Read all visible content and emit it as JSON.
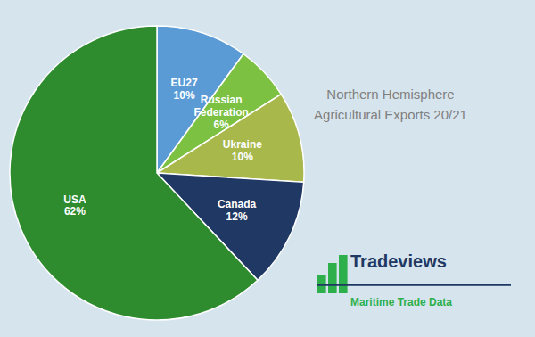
{
  "chart_data": {
    "type": "pie",
    "title": "Northern Hemisphere\nAgricultural Exports 20/21",
    "categories": [
      "EU27",
      "Russian\nFederation",
      "Ukraine",
      "Canada",
      "USA"
    ],
    "values": [
      10,
      6,
      10,
      12,
      62
    ],
    "value_labels": [
      "10%",
      "6%",
      "10%",
      "12%",
      "62%"
    ],
    "colors": [
      "#5b9bd5",
      "#7dc143",
      "#a8b84b",
      "#1f3864",
      "#2e8b2e"
    ],
    "data_labels": true,
    "annotations": [
      "Tradeviews",
      "Maritime Trade Data"
    ]
  }
}
